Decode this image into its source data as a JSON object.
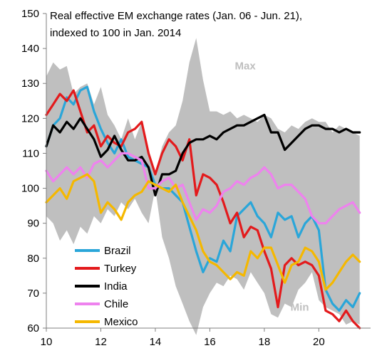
{
  "chart_data": {
    "type": "line",
    "title_line1": "Real effective EM exchange rates (Jan. 06 - Jun. 21),",
    "title_line2": "indexed to 100 in Jan. 2014",
    "xlabel": "",
    "ylabel": "",
    "xlim": [
      10,
      21.9
    ],
    "ylim": [
      60,
      150
    ],
    "x_ticks": [
      10,
      12,
      14,
      16,
      18,
      20
    ],
    "y_ticks": [
      60,
      70,
      80,
      90,
      100,
      110,
      120,
      130,
      140,
      150
    ],
    "grid": false,
    "legend_position": "lower-left",
    "annotations": [
      {
        "text": "Max",
        "x": 17.3,
        "y": 134
      },
      {
        "text": "Min",
        "x": 19.3,
        "y": 65
      }
    ],
    "band": {
      "fill": "#bfbfbf",
      "x": [
        10.0,
        10.25,
        10.5,
        10.75,
        11.0,
        11.25,
        11.5,
        11.75,
        12.0,
        12.25,
        12.5,
        12.75,
        13.0,
        13.25,
        13.5,
        13.75,
        14.0,
        14.25,
        14.5,
        14.75,
        15.0,
        15.25,
        15.5,
        15.75,
        16.0,
        16.25,
        16.5,
        16.75,
        17.0,
        17.25,
        17.5,
        17.75,
        18.0,
        18.25,
        18.5,
        18.75,
        19.0,
        19.25,
        19.5,
        19.75,
        20.0,
        20.25,
        20.5,
        20.75,
        21.0,
        21.25,
        21.5
      ],
      "upper": [
        132,
        136,
        134,
        135,
        127,
        129,
        130,
        124,
        129,
        121,
        118,
        114,
        120,
        114,
        119,
        110,
        104,
        112,
        116,
        118,
        125,
        136,
        143,
        131,
        122,
        122,
        121,
        122,
        120,
        121,
        120,
        119,
        121,
        120,
        117,
        116,
        118,
        117,
        119,
        120,
        119,
        119,
        116,
        118,
        117,
        116,
        115
      ],
      "lower": [
        92,
        90,
        85,
        88,
        84,
        89,
        87,
        92,
        90,
        94,
        92,
        96,
        94,
        97,
        93,
        90,
        100,
        86,
        80,
        72,
        67,
        62,
        58,
        66,
        70,
        73,
        72,
        75,
        74,
        71,
        76,
        73,
        70,
        64,
        63,
        67,
        66,
        71,
        73,
        76,
        68,
        66,
        65,
        64,
        61,
        62,
        61
      ]
    },
    "x": [
      10.0,
      10.25,
      10.5,
      10.75,
      11.0,
      11.25,
      11.5,
      11.75,
      12.0,
      12.25,
      12.5,
      12.75,
      13.0,
      13.25,
      13.5,
      13.75,
      14.0,
      14.25,
      14.5,
      14.75,
      15.0,
      15.25,
      15.5,
      15.75,
      16.0,
      16.25,
      16.5,
      16.75,
      17.0,
      17.25,
      17.5,
      17.75,
      18.0,
      18.25,
      18.5,
      18.75,
      19.0,
      19.25,
      19.5,
      19.75,
      20.0,
      20.25,
      20.5,
      20.75,
      21.0,
      21.25,
      21.5
    ],
    "series": [
      {
        "name": "Brazil",
        "color": "#2aa6d9",
        "values": [
          112,
          118,
          120,
          126,
          124,
          128,
          129,
          122,
          117,
          113,
          110,
          114,
          109,
          108,
          107,
          106,
          101,
          100,
          100,
          98,
          96,
          89,
          82,
          76,
          80,
          79,
          85,
          82,
          92,
          94,
          96,
          92,
          90,
          86,
          93,
          91,
          92,
          86,
          90,
          92,
          88,
          71,
          67,
          65,
          68,
          66,
          70
        ]
      },
      {
        "name": "Turkey",
        "color": "#e31a1c",
        "values": [
          121,
          124,
          127,
          125,
          128,
          122,
          116,
          118,
          112,
          115,
          113,
          112,
          116,
          117,
          119,
          110,
          104,
          110,
          114,
          112,
          108,
          114,
          98,
          104,
          103,
          101,
          96,
          90,
          93,
          86,
          89,
          88,
          82,
          77,
          66,
          78,
          80,
          78,
          79,
          78,
          75,
          65,
          64,
          62,
          65,
          62,
          60
        ]
      },
      {
        "name": "India",
        "color": "#000000",
        "values": [
          112,
          118,
          116,
          119,
          117,
          120,
          117,
          114,
          109,
          111,
          115,
          111,
          108,
          108,
          109,
          106,
          98,
          104,
          104,
          105,
          110,
          113,
          114,
          114,
          115,
          114,
          116,
          117,
          118,
          118,
          119,
          120,
          121,
          116,
          116,
          111,
          113,
          115,
          117,
          118,
          118,
          117,
          117,
          116,
          117,
          116,
          116
        ]
      },
      {
        "name": "Chile",
        "color": "#ee82ee",
        "values": [
          105,
          102,
          104,
          106,
          104,
          106,
          103,
          107,
          108,
          106,
          108,
          110,
          110,
          109,
          108,
          100,
          100,
          102,
          103,
          100,
          101,
          96,
          91,
          94,
          93,
          95,
          99,
          100,
          102,
          101,
          103,
          104,
          106,
          104,
          100,
          101,
          101,
          99,
          97,
          92,
          90,
          90,
          92,
          94,
          95,
          96,
          93
        ]
      },
      {
        "name": "Mexico",
        "color": "#f5b800",
        "values": [
          96,
          98,
          100,
          97,
          102,
          103,
          104,
          102,
          93,
          96,
          94,
          91,
          96,
          98,
          99,
          102,
          101,
          100,
          99,
          101,
          96,
          92,
          88,
          82,
          79,
          78,
          76,
          74,
          76,
          75,
          82,
          80,
          83,
          83,
          78,
          73,
          78,
          79,
          83,
          82,
          79,
          71,
          73,
          76,
          79,
          81,
          79
        ]
      }
    ]
  }
}
